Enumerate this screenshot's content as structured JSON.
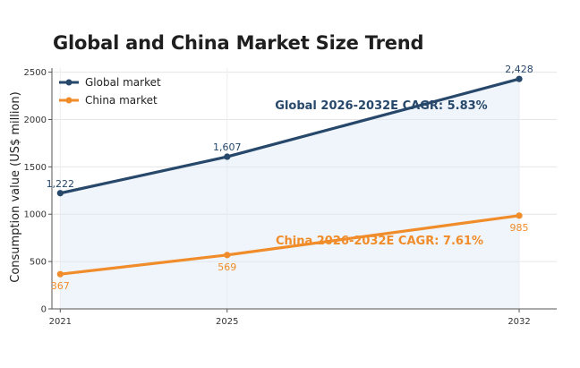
{
  "chart_data": {
    "type": "line",
    "title": "Global and China Market Size Trend",
    "ylabel": "Consumption value (US$ million)",
    "xlabel": "",
    "categories": [
      "2021",
      "2025",
      "2032"
    ],
    "x": [
      2021,
      2025,
      2032
    ],
    "ylim": [
      0,
      2600
    ],
    "yticks": [
      0,
      500,
      1000,
      1500,
      2000,
      2500
    ],
    "grid": true,
    "legend_position": "top-left",
    "series": [
      {
        "name": "Global market",
        "values": [
          1222,
          1607,
          2428
        ],
        "labels": [
          "1,222",
          "1,607",
          "2,428"
        ],
        "color": "#27486b",
        "fill": true
      },
      {
        "name": "China market",
        "values": [
          367,
          569,
          985
        ],
        "labels": [
          "367",
          "569",
          "985"
        ],
        "color": "#f08c2a",
        "fill": false
      }
    ],
    "annotations": [
      {
        "text": "Global 2026-2032E CAGR: 5.83%",
        "color": "#27486b"
      },
      {
        "text": "China 2026-2032E CAGR: 7.61%",
        "color": "#f08c2a"
      }
    ]
  }
}
